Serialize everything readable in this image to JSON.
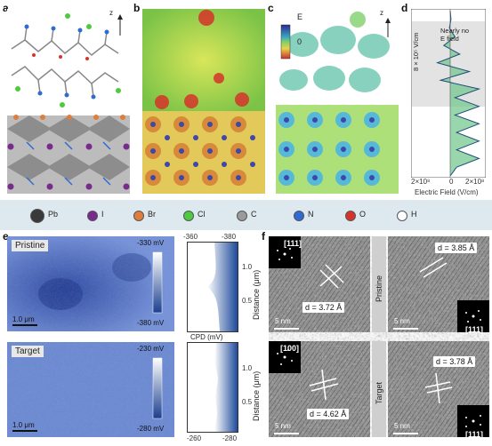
{
  "panels": {
    "a": "a",
    "b": "b",
    "c": "c",
    "d": "d",
    "e": "e",
    "f": "f"
  },
  "axis_z": "z",
  "panel_c": {
    "colorbar_top": "E",
    "colorbar_zero": "0"
  },
  "panel_d": {
    "annotation": "Nearly no\nE field",
    "scale_label": "8 × 10⁵ V/cm",
    "xlabel": "Electric Field (V/cm)",
    "xticks": [
      "2×10⁸",
      "0",
      "2×10⁸"
    ]
  },
  "legend": [
    {
      "symbol": "Pb",
      "color": "#3a3a3a"
    },
    {
      "symbol": "I",
      "color": "#7a2a8c"
    },
    {
      "symbol": "Br",
      "color": "#e07d3c"
    },
    {
      "symbol": "Cl",
      "color": "#4ccb3f"
    },
    {
      "symbol": "C",
      "color": "#9a9a9a"
    },
    {
      "symbol": "N",
      "color": "#2f6bd1"
    },
    {
      "symbol": "O",
      "color": "#d6342a"
    },
    {
      "symbol": "H",
      "color": "#ffffff"
    }
  ],
  "panel_e": {
    "pristine": {
      "label": "Pristine",
      "top_mv": "-330 mV",
      "bottom_mv": "-380 mV",
      "scale": "1.0 μm"
    },
    "target": {
      "label": "Target",
      "top_mv": "-230 mV",
      "bottom_mv": "-280 mV",
      "scale": "1.0 μm"
    },
    "cpd_top_ticks": [
      "-360",
      "-380"
    ],
    "cpd_bottom_ticks": [
      "-260",
      "-280"
    ],
    "cpd_label": "CPD (mV)",
    "distance_label": "Distance (μm)",
    "distance_ticks": [
      "1.0",
      "0.5"
    ]
  },
  "panel_f": {
    "pristine_label": "Pristine",
    "target_label": "Target",
    "tiles": [
      {
        "fft": "[111]",
        "d": "d = 3.72 Å",
        "scale": "5 nm"
      },
      {
        "fft": "[111]",
        "d": "d = 3.85 Å",
        "scale": "5 nm"
      },
      {
        "fft": "[100]",
        "d": "d = 4.62 Å",
        "scale": "5 nm"
      },
      {
        "fft": "[111]",
        "d": "d = 3.78 Å",
        "scale": "5 nm"
      }
    ]
  },
  "chart_data": {
    "type": "line",
    "title": "",
    "xlabel": "Electric Field (V/cm)",
    "ylabel": "",
    "note": "Nearly no E field",
    "scale_label": "8 × 10⁵ V/cm",
    "xlim": [
      -250000000,
      250000000
    ],
    "series": [
      {
        "values": [
          0,
          5,
          -5,
          30,
          -40,
          60,
          -80,
          120,
          -60,
          180,
          30,
          180,
          30,
          180,
          40,
          180,
          40,
          180,
          40,
          0
        ]
      }
    ]
  }
}
